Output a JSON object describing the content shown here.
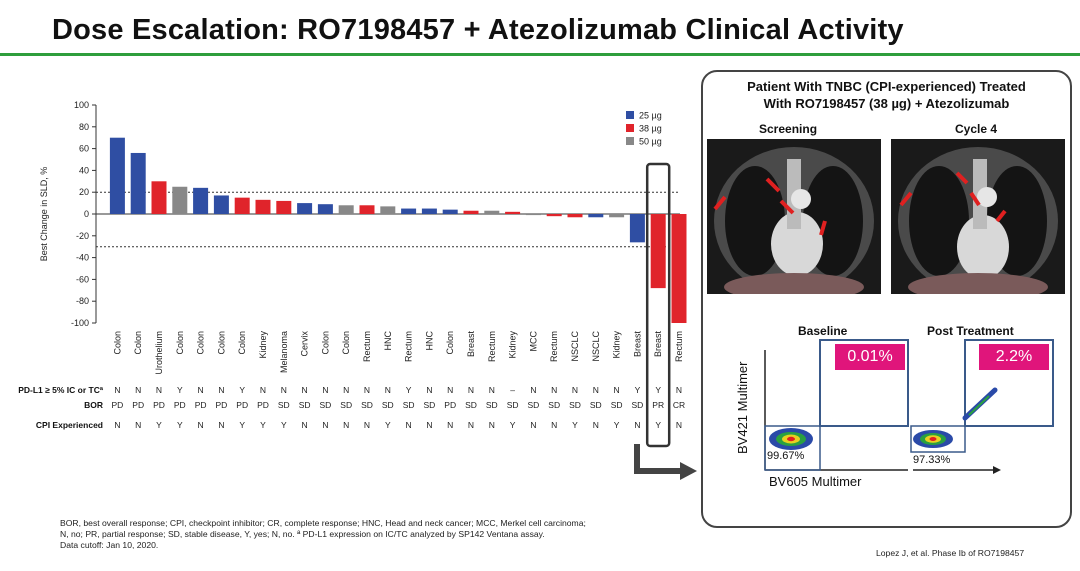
{
  "header": {
    "title": "Dose Escalation: RO7198457 + Atezolizumab Clinical Activity"
  },
  "colors": {
    "25": "#2f4ea3",
    "38": "#e0242b",
    "50": "#888888",
    "brand_green": "#2e9e3c",
    "yes_red": "#d22222",
    "highlight_pink": "#e0157b"
  },
  "chart_data": {
    "type": "bar",
    "ylabel": "Best Change in SLD, %",
    "ylim": [
      -100,
      100
    ],
    "yticks": [
      100,
      80,
      60,
      40,
      20,
      0,
      -20,
      -40,
      -60,
      -80,
      -100
    ],
    "reference_lines": [
      20,
      -30
    ],
    "legend": [
      {
        "label": "25 µg",
        "dose": "25"
      },
      {
        "label": "38 µg",
        "dose": "38"
      },
      {
        "label": "50 µg",
        "dose": "50"
      }
    ],
    "legend_position": "top-right",
    "categories": [
      "Colon",
      "Colon",
      "Urothelium",
      "Colon",
      "Colon",
      "Colon",
      "Colon",
      "Kidney",
      "Melanoma",
      "Cervix",
      "Colon",
      "Colon",
      "Rectum",
      "HNC",
      "Rectum",
      "HNC",
      "Colon",
      "Breast",
      "Rectum",
      "Kidney",
      "MCC",
      "Rectum",
      "NSCLC",
      "NSCLC",
      "Kidney",
      "Breast",
      "Breast",
      "Rectum"
    ],
    "values": [
      70,
      56,
      30,
      25,
      24,
      17,
      15,
      13,
      12,
      10,
      9,
      8,
      8,
      7,
      5,
      5,
      4,
      3,
      3,
      2,
      -1,
      -2,
      -3,
      -3,
      -3,
      -26,
      -68,
      -100
    ],
    "doses": [
      "25",
      "25",
      "38",
      "50",
      "25",
      "25",
      "38",
      "38",
      "38",
      "25",
      "25",
      "50",
      "38",
      "50",
      "25",
      "25",
      "25",
      "38",
      "50",
      "38",
      "50",
      "38",
      "38",
      "25",
      "50",
      "25",
      "38",
      "38"
    ],
    "highlight_index": 26
  },
  "table": {
    "row_labels": [
      "PD-L1 ≥ 5% IC or TCª",
      "BOR",
      "CPI Experienced"
    ],
    "pdl1": [
      "N",
      "N",
      "N",
      "Y",
      "N",
      "N",
      "Y",
      "N",
      "N",
      "N",
      "N",
      "N",
      "N",
      "N",
      "Y",
      "N",
      "N",
      "N",
      "N",
      "–",
      "N",
      "N",
      "N",
      "N",
      "N",
      "Y",
      "Y",
      "N"
    ],
    "bor": [
      "PD",
      "PD",
      "PD",
      "PD",
      "PD",
      "PD",
      "PD",
      "PD",
      "SD",
      "SD",
      "SD",
      "SD",
      "SD",
      "SD",
      "SD",
      "SD",
      "PD",
      "SD",
      "SD",
      "SD",
      "SD",
      "SD",
      "SD",
      "SD",
      "SD",
      "SD",
      "PR",
      "CR"
    ],
    "cpi": [
      "N",
      "N",
      "Y",
      "Y",
      "N",
      "N",
      "Y",
      "Y",
      "Y",
      "N",
      "N",
      "N",
      "N",
      "Y",
      "N",
      "N",
      "N",
      "N",
      "N",
      "Y",
      "N",
      "N",
      "Y",
      "N",
      "Y",
      "N",
      "Y",
      "N"
    ]
  },
  "panel": {
    "title_line1": "Patient With TNBC (CPI-experienced) Treated",
    "title_line2": "With RO7198457 (38 µg) + Atezolizumab",
    "scan_left_label": "Screening",
    "scan_right_label": "Cycle 4",
    "flow_left_label": "Baseline",
    "flow_right_label": "Post Treatment",
    "flow_left_pct": "0.01%",
    "flow_right_pct": "2.2%",
    "flow_left_low": "99.67%",
    "flow_right_low": "97.33%",
    "y_axis_label": "BV421 Multimer",
    "x_axis_label": "BV605 Multimer"
  },
  "footnote": {
    "line1": "BOR, best overall response; CPI, checkpoint inhibitor; CR, complete response; HNC, Head and neck cancer; MCC, Merkel cell carcinoma;",
    "line2": "N, no; PR, partial response; SD, stable disease, Y, yes; N, no. ª PD-L1 expression on IC/TC analyzed by SP142 Ventana assay.",
    "line3": "Data cutoff: Jan 10, 2020."
  },
  "citation": "Lopez J, et al. Phase Ib of RO7198457"
}
